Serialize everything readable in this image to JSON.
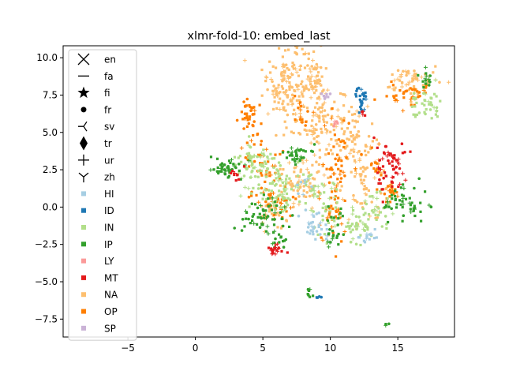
{
  "chart_data": {
    "type": "scatter",
    "title": "xlmr-fold-10: embed_last",
    "xlabel": "",
    "ylabel": "",
    "xlim": [
      -9.8,
      19.2
    ],
    "ylim": [
      -8.7,
      10.8
    ],
    "xticks": [
      -5,
      0,
      5,
      10,
      15
    ],
    "yticks": [
      -7.5,
      -5.0,
      -2.5,
      0.0,
      2.5,
      5.0,
      7.5,
      10.0
    ],
    "xtick_labels": [
      "−5",
      "0",
      "5",
      "10",
      "15"
    ],
    "ytick_labels": [
      "−7.5",
      "−5.0",
      "−2.5",
      "0.0",
      "2.5",
      "5.0",
      "7.5",
      "10.0"
    ],
    "grid": false,
    "legend_position": "upper-left",
    "marker_legend": [
      {
        "label": "en",
        "marker": "x"
      },
      {
        "label": "fa",
        "marker": "hline"
      },
      {
        "label": "fi",
        "marker": "star"
      },
      {
        "label": "fr",
        "marker": "dot"
      },
      {
        "label": "sv",
        "marker": "tri_left"
      },
      {
        "label": "tr",
        "marker": "thin_diamond"
      },
      {
        "label": "ur",
        "marker": "plus"
      },
      {
        "label": "zh",
        "marker": "tri_down"
      }
    ],
    "color_legend": [
      {
        "label": "HI",
        "color": "#a6cee3"
      },
      {
        "label": "ID",
        "color": "#1f78b4"
      },
      {
        "label": "IN",
        "color": "#b2df8a"
      },
      {
        "label": "IP",
        "color": "#33a02c"
      },
      {
        "label": "LY",
        "color": "#fb9a99"
      },
      {
        "label": "MT",
        "color": "#e31a1c"
      },
      {
        "label": "NA",
        "color": "#fdbf6f"
      },
      {
        "label": "OP",
        "color": "#ff7f00"
      },
      {
        "label": "SP",
        "color": "#cab2d6"
      }
    ],
    "clusters": [
      {
        "label": "NA",
        "color": "#fdbf6f",
        "cx": 6.8,
        "cy": 8.2,
        "sx": 0.9,
        "sy": 1.4,
        "n": 150
      },
      {
        "label": "NA",
        "color": "#fdbf6f",
        "cx": 8.8,
        "cy": 8.6,
        "sx": 0.5,
        "sy": 0.8,
        "n": 60
      },
      {
        "label": "NA",
        "color": "#fdbf6f",
        "cx": 9.0,
        "cy": 5.0,
        "sx": 0.8,
        "sy": 1.6,
        "n": 90
      },
      {
        "label": "NA",
        "color": "#fdbf6f",
        "cx": 11.2,
        "cy": 5.0,
        "sx": 0.6,
        "sy": 1.2,
        "n": 60
      },
      {
        "label": "NA",
        "color": "#fdbf6f",
        "cx": 12.5,
        "cy": 2.0,
        "sx": 1.0,
        "sy": 1.5,
        "n": 80
      },
      {
        "label": "NA",
        "color": "#fdbf6f",
        "cx": 7.5,
        "cy": 1.6,
        "sx": 1.0,
        "sy": 0.8,
        "n": 60
      },
      {
        "label": "NA",
        "color": "#fdbf6f",
        "cx": 16.0,
        "cy": 8.5,
        "sx": 1.0,
        "sy": 0.5,
        "n": 60
      },
      {
        "label": "NA",
        "color": "#fdbf6f",
        "cx": 5.7,
        "cy": -0.3,
        "sx": 0.5,
        "sy": 0.4,
        "n": 25
      },
      {
        "label": "OP",
        "color": "#ff7f00",
        "cx": 4.0,
        "cy": 6.0,
        "sx": 0.5,
        "sy": 0.6,
        "n": 40
      },
      {
        "label": "OP",
        "color": "#ff7f00",
        "cx": 5.0,
        "cy": 2.5,
        "sx": 0.7,
        "sy": 1.2,
        "n": 50
      },
      {
        "label": "OP",
        "color": "#ff7f00",
        "cx": 10.5,
        "cy": 2.5,
        "sx": 0.6,
        "sy": 1.8,
        "n": 50
      },
      {
        "label": "OP",
        "color": "#ff7f00",
        "cx": 6.2,
        "cy": 0.3,
        "sx": 0.6,
        "sy": 0.5,
        "n": 35
      },
      {
        "label": "OP",
        "color": "#ff7f00",
        "cx": 10.0,
        "cy": -0.6,
        "sx": 0.5,
        "sy": 1.0,
        "n": 30
      },
      {
        "label": "OP",
        "color": "#ff7f00",
        "cx": 15.8,
        "cy": 7.5,
        "sx": 0.8,
        "sy": 0.4,
        "n": 35
      },
      {
        "label": "OP",
        "color": "#ff7f00",
        "cx": 14.5,
        "cy": 0.9,
        "sx": 0.4,
        "sy": 0.4,
        "n": 20
      },
      {
        "label": "OP",
        "color": "#ff7f00",
        "cx": 8.0,
        "cy": 6.2,
        "sx": 0.3,
        "sy": 0.5,
        "n": 15
      },
      {
        "label": "OP",
        "color": "#ff7f00",
        "cx": 13.3,
        "cy": 2.8,
        "sx": 0.3,
        "sy": 0.8,
        "n": 15
      },
      {
        "label": "IN",
        "color": "#b2df8a",
        "cx": 4.5,
        "cy": 2.8,
        "sx": 0.9,
        "sy": 0.7,
        "n": 70
      },
      {
        "label": "IN",
        "color": "#b2df8a",
        "cx": 6.5,
        "cy": 1.2,
        "sx": 1.0,
        "sy": 0.9,
        "n": 70
      },
      {
        "label": "IN",
        "color": "#b2df8a",
        "cx": 12.0,
        "cy": -1.0,
        "sx": 1.2,
        "sy": 0.6,
        "n": 60
      },
      {
        "label": "IN",
        "color": "#b2df8a",
        "cx": 17.0,
        "cy": 6.8,
        "sx": 0.6,
        "sy": 0.5,
        "n": 40
      },
      {
        "label": "IN",
        "color": "#b2df8a",
        "cx": 9.5,
        "cy": 0.8,
        "sx": 0.7,
        "sy": 0.7,
        "n": 35
      },
      {
        "label": "IN",
        "color": "#b2df8a",
        "cx": 13.5,
        "cy": 0.2,
        "sx": 0.5,
        "sy": 0.5,
        "n": 20
      },
      {
        "label": "IP",
        "color": "#33a02c",
        "cx": 2.2,
        "cy": 2.5,
        "sx": 0.7,
        "sy": 0.3,
        "n": 40
      },
      {
        "label": "IP",
        "color": "#33a02c",
        "cx": 5.0,
        "cy": -0.6,
        "sx": 0.7,
        "sy": 0.7,
        "n": 55
      },
      {
        "label": "IP",
        "color": "#33a02c",
        "cx": 7.5,
        "cy": 3.5,
        "sx": 0.6,
        "sy": 0.4,
        "n": 35
      },
      {
        "label": "IP",
        "color": "#33a02c",
        "cx": 10.3,
        "cy": -1.5,
        "sx": 0.3,
        "sy": 0.8,
        "n": 25
      },
      {
        "label": "IP",
        "color": "#33a02c",
        "cx": 15.7,
        "cy": 0.2,
        "sx": 0.9,
        "sy": 0.6,
        "n": 50
      },
      {
        "label": "IP",
        "color": "#33a02c",
        "cx": 17.2,
        "cy": 8.6,
        "sx": 0.3,
        "sy": 0.3,
        "n": 15
      },
      {
        "label": "IP",
        "color": "#33a02c",
        "cx": 6.2,
        "cy": -2.2,
        "sx": 0.3,
        "sy": 0.4,
        "n": 15
      },
      {
        "label": "IP",
        "color": "#33a02c",
        "cx": 8.4,
        "cy": -5.8,
        "sx": 0.12,
        "sy": 0.2,
        "n": 8
      },
      {
        "label": "IP",
        "color": "#33a02c",
        "cx": 14.1,
        "cy": -7.8,
        "sx": 0.1,
        "sy": 0.1,
        "n": 4
      },
      {
        "label": "MT",
        "color": "#e31a1c",
        "cx": 14.5,
        "cy": 2.5,
        "sx": 0.6,
        "sy": 1.0,
        "n": 60
      },
      {
        "label": "MT",
        "color": "#e31a1c",
        "cx": 6.0,
        "cy": -2.8,
        "sx": 0.3,
        "sy": 0.3,
        "n": 18
      },
      {
        "label": "MT",
        "color": "#e31a1c",
        "cx": 3.0,
        "cy": 2.2,
        "sx": 0.25,
        "sy": 0.3,
        "n": 10
      },
      {
        "label": "MT",
        "color": "#e31a1c",
        "cx": 12.4,
        "cy": 6.2,
        "sx": 0.12,
        "sy": 0.2,
        "n": 6
      },
      {
        "label": "HI",
        "color": "#a6cee3",
        "cx": 8.8,
        "cy": -1.3,
        "sx": 0.6,
        "sy": 0.6,
        "n": 30
      },
      {
        "label": "HI",
        "color": "#a6cee3",
        "cx": 12.7,
        "cy": -1.9,
        "sx": 0.4,
        "sy": 0.3,
        "n": 15
      },
      {
        "label": "HI",
        "color": "#a6cee3",
        "cx": 8.0,
        "cy": 1.5,
        "sx": 0.25,
        "sy": 0.25,
        "n": 8
      },
      {
        "label": "ID",
        "color": "#1f78b4",
        "cx": 12.3,
        "cy": 7.3,
        "sx": 0.2,
        "sy": 0.35,
        "n": 25
      },
      {
        "label": "ID",
        "color": "#1f78b4",
        "cx": 9.1,
        "cy": -6.0,
        "sx": 0.1,
        "sy": 0.1,
        "n": 4
      },
      {
        "label": "LY",
        "color": "#fb9a99",
        "cx": 10.4,
        "cy": 5.6,
        "sx": 0.15,
        "sy": 0.15,
        "n": 5
      },
      {
        "label": "SP",
        "color": "#cab2d6",
        "cx": 9.7,
        "cy": 7.4,
        "sx": 0.2,
        "sy": 0.15,
        "n": 8
      }
    ]
  }
}
